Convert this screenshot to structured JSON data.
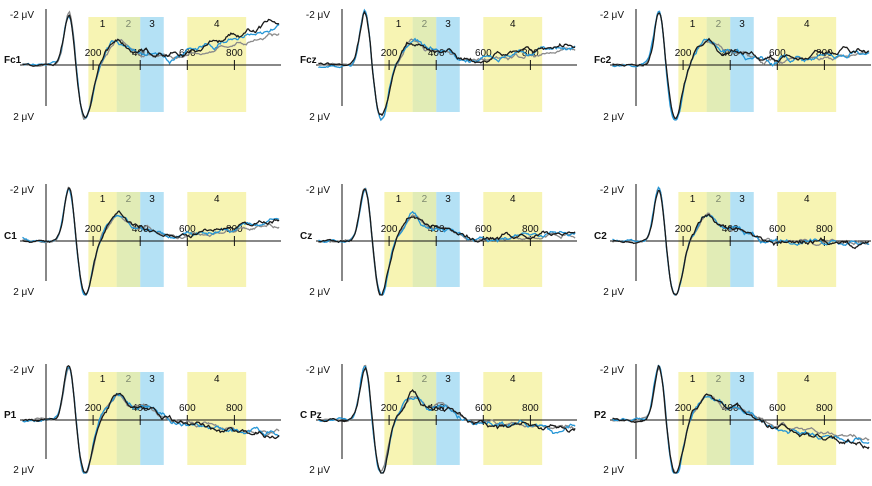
{
  "colors": {
    "win_yellow": "#f6f2a6",
    "win_blue": "#a7dcf3",
    "series_black": "#1a1a1a",
    "series_cyan": "#2596d6",
    "series_gray": "#8a8a8a"
  },
  "axis": {
    "y_top_label": "-2 μV",
    "y_bottom_label": "2 μV",
    "x_ticks": [
      "200",
      "400",
      "600",
      "800"
    ]
  },
  "windows": [
    {
      "label": "1",
      "start": 180,
      "end": 300,
      "color": "yellow"
    },
    {
      "label": "2",
      "start": 300,
      "end": 400,
      "color": "yellow"
    },
    {
      "label": "3",
      "start": 400,
      "end": 500,
      "color": "blue"
    },
    {
      "label": "4",
      "start": 600,
      "end": 850,
      "color": "yellow"
    }
  ],
  "chart_data": [
    {
      "channel": "Fc1",
      "type": "line",
      "xlim": [
        -100,
        1000
      ],
      "ylim": [
        -2,
        2
      ],
      "seed": 1,
      "late_drift": -1.6,
      "noise": 0.35
    },
    {
      "channel": "Fcz",
      "type": "line",
      "xlim": [
        -100,
        1000
      ],
      "ylim": [
        -2,
        2
      ],
      "seed": 2,
      "late_drift": -0.8,
      "noise": 0.35
    },
    {
      "channel": "Fc2",
      "type": "line",
      "xlim": [
        -100,
        1000
      ],
      "ylim": [
        -2,
        2
      ],
      "seed": 3,
      "late_drift": -0.6,
      "noise": 0.35
    },
    {
      "channel": "C1",
      "type": "line",
      "xlim": [
        -100,
        1000
      ],
      "ylim": [
        -2,
        2
      ],
      "seed": 4,
      "late_drift": -0.8,
      "noise": 0.3
    },
    {
      "channel": "Cz",
      "type": "line",
      "xlim": [
        -100,
        1000
      ],
      "ylim": [
        -2,
        2
      ],
      "seed": 5,
      "late_drift": -0.3,
      "noise": 0.3
    },
    {
      "channel": "C2",
      "type": "line",
      "xlim": [
        -100,
        1000
      ],
      "ylim": [
        -2,
        2
      ],
      "seed": 6,
      "late_drift": 0.1,
      "noise": 0.3
    },
    {
      "channel": "P1",
      "type": "line",
      "xlim": [
        -100,
        1000
      ],
      "ylim": [
        -2,
        2
      ],
      "seed": 7,
      "late_drift": 0.6,
      "noise": 0.35
    },
    {
      "channel": "C Pz",
      "type": "line",
      "xlim": [
        -100,
        1000
      ],
      "ylim": [
        -2,
        2
      ],
      "seed": 8,
      "late_drift": 0.4,
      "noise": 0.35
    },
    {
      "channel": "P2",
      "type": "line",
      "xlim": [
        -100,
        1000
      ],
      "ylim": [
        -2,
        2
      ],
      "seed": 9,
      "late_drift": 1.0,
      "noise": 0.35
    }
  ]
}
